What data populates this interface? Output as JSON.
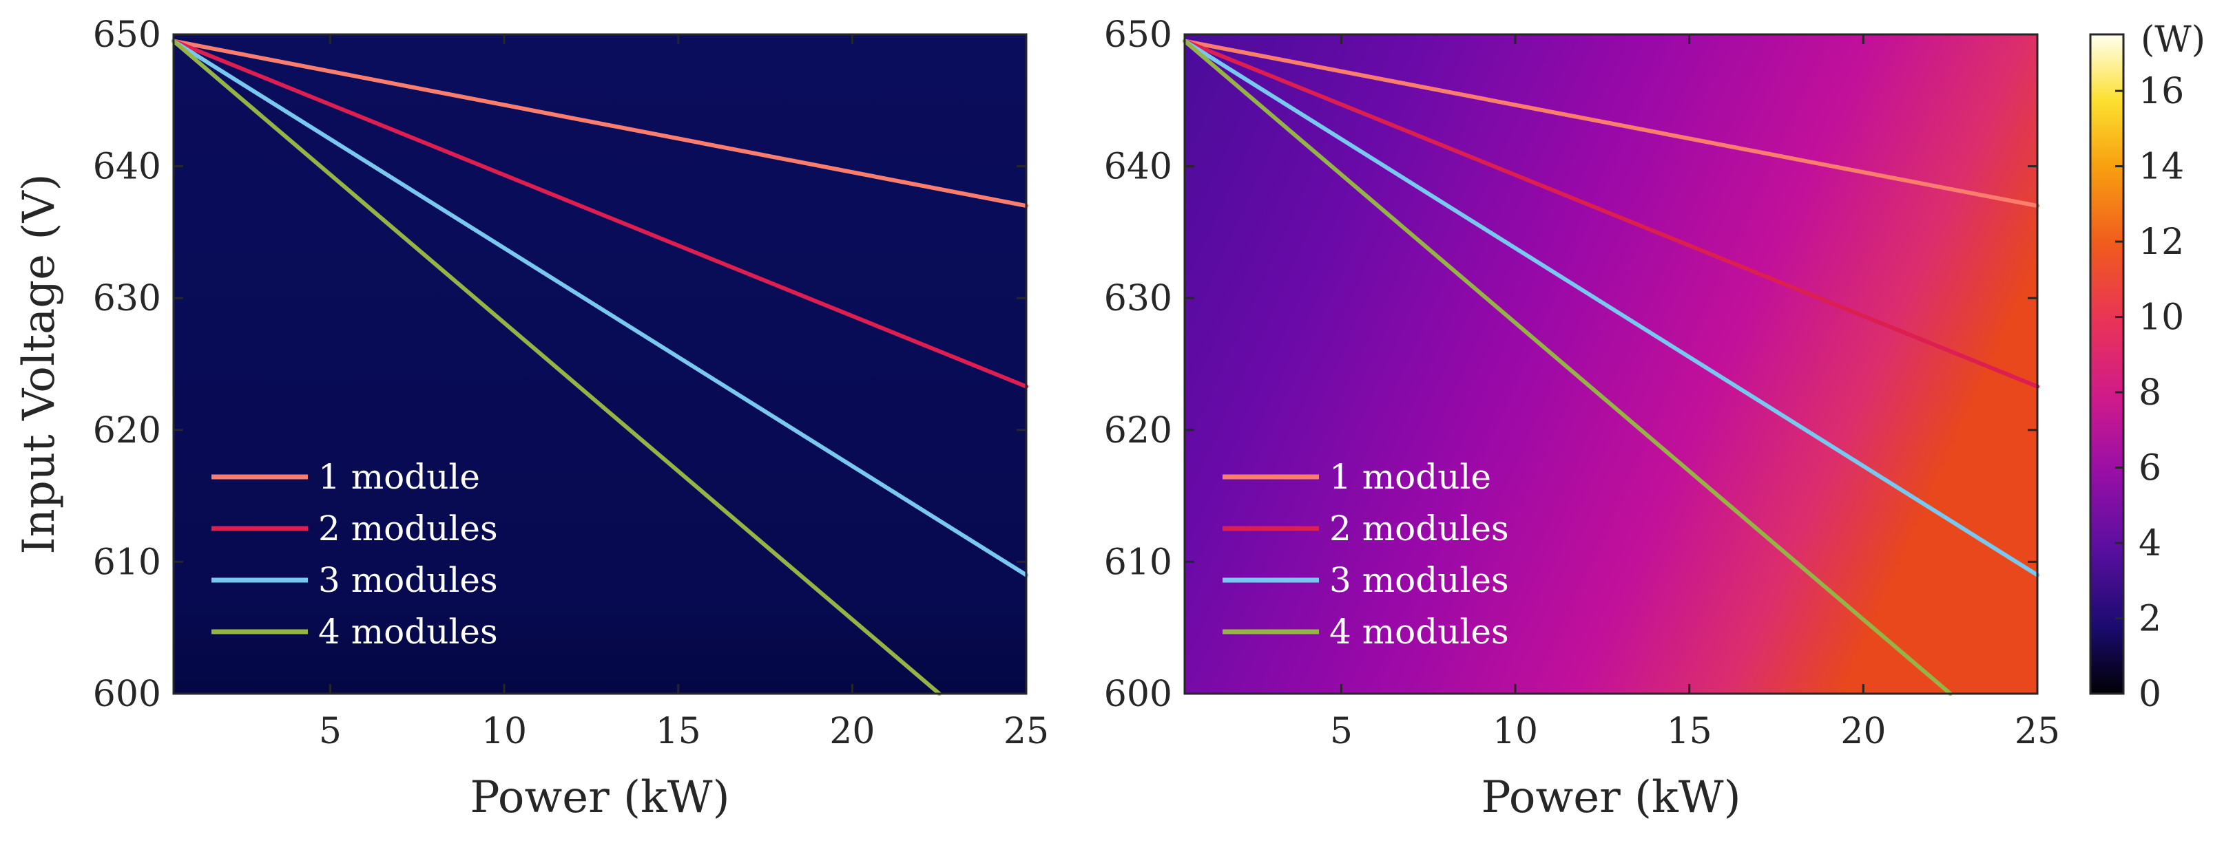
{
  "chart_data": [
    {
      "type": "line",
      "heatmap": {
        "value_range": [
          0.4,
          0.8
        ],
        "description_colormap": "inferno"
      },
      "title": "",
      "xlabel": "Power (kW)",
      "ylabel": "Input Voltage (V)",
      "xlim": [
        0.5,
        25
      ],
      "ylim": [
        600,
        650
      ],
      "xticks": [
        "5",
        "10",
        "15",
        "20",
        "25"
      ],
      "yticks": [
        "600",
        "610",
        "620",
        "630",
        "640",
        "650"
      ],
      "legend_position": "bottom-left",
      "series": [
        {
          "name": "1 module",
          "color": "#fa7d6e",
          "x": [
            0.5,
            25
          ],
          "y": [
            649.5,
            637.0
          ]
        },
        {
          "name": "2 modules",
          "color": "#dc1e50",
          "x": [
            0.5,
            25
          ],
          "y": [
            649.5,
            623.3
          ]
        },
        {
          "name": "3 modules",
          "color": "#78c8f0",
          "x": [
            0.5,
            25
          ],
          "y": [
            649.5,
            609.0
          ]
        },
        {
          "name": "4 modules",
          "color": "#96b446",
          "x": [
            0.5,
            22.5
          ],
          "y": [
            649.5,
            600.0
          ]
        }
      ]
    },
    {
      "type": "line",
      "heatmap": {
        "value_range": [
          4.0,
          9.5
        ],
        "description_colormap": "inferno"
      },
      "title": "",
      "xlabel": "Power (kW)",
      "ylabel": "",
      "xlim": [
        0.5,
        25
      ],
      "ylim": [
        600,
        650
      ],
      "xticks": [
        "5",
        "10",
        "15",
        "20",
        "25"
      ],
      "yticks": [
        "600",
        "610",
        "620",
        "630",
        "640",
        "650"
      ],
      "legend_position": "bottom-left",
      "series": [
        {
          "name": "1 module",
          "color": "#fa7d6e",
          "x": [
            0.5,
            25
          ],
          "y": [
            649.5,
            637.0
          ]
        },
        {
          "name": "2 modules",
          "color": "#dc1e50",
          "x": [
            0.5,
            25
          ],
          "y": [
            649.5,
            623.3
          ]
        },
        {
          "name": "3 modules",
          "color": "#78c8f0",
          "x": [
            0.5,
            25
          ],
          "y": [
            649.5,
            609.0
          ]
        },
        {
          "name": "4 modules",
          "color": "#96b446",
          "x": [
            0.5,
            22.5
          ],
          "y": [
            649.5,
            600.0
          ]
        }
      ]
    }
  ],
  "colorbar": {
    "unit": "(W)",
    "range": [
      0,
      17.5
    ],
    "ticks": [
      "0",
      "2",
      "4",
      "6",
      "8",
      "10",
      "12",
      "14",
      "16"
    ]
  }
}
